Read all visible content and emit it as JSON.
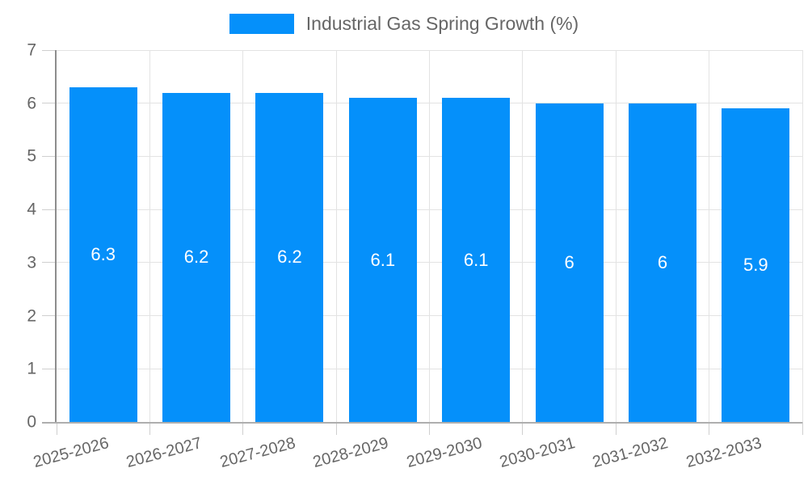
{
  "chart_data": {
    "type": "bar",
    "title": "Industrial Gas Spring Growth (%)",
    "categories": [
      "2025-2026",
      "2026-2027",
      "2027-2028",
      "2028-2029",
      "2029-2030",
      "2030-2031",
      "2031-2032",
      "2032-2033"
    ],
    "values": [
      6.3,
      6.2,
      6.2,
      6.1,
      6.1,
      6,
      6,
      5.9
    ],
    "series": [
      {
        "name": "Industrial Gas Spring Growth (%)",
        "values": [
          6.3,
          6.2,
          6.2,
          6.1,
          6.1,
          6,
          6,
          5.9
        ]
      }
    ],
    "xlabel": "",
    "ylabel": "",
    "ylim": [
      0,
      7
    ],
    "yticks": [
      0,
      1,
      2,
      3,
      4,
      5,
      6,
      7
    ],
    "grid": true,
    "legend_position": "top",
    "bar_color": "#0590FA",
    "bar_label_color": "#ffffff",
    "axis_text_color": "#666666",
    "grid_color": "#e3e3e3"
  },
  "legend": {
    "label": "Industrial Gas Spring Growth (%)",
    "swatch_color": "#0590FA"
  }
}
